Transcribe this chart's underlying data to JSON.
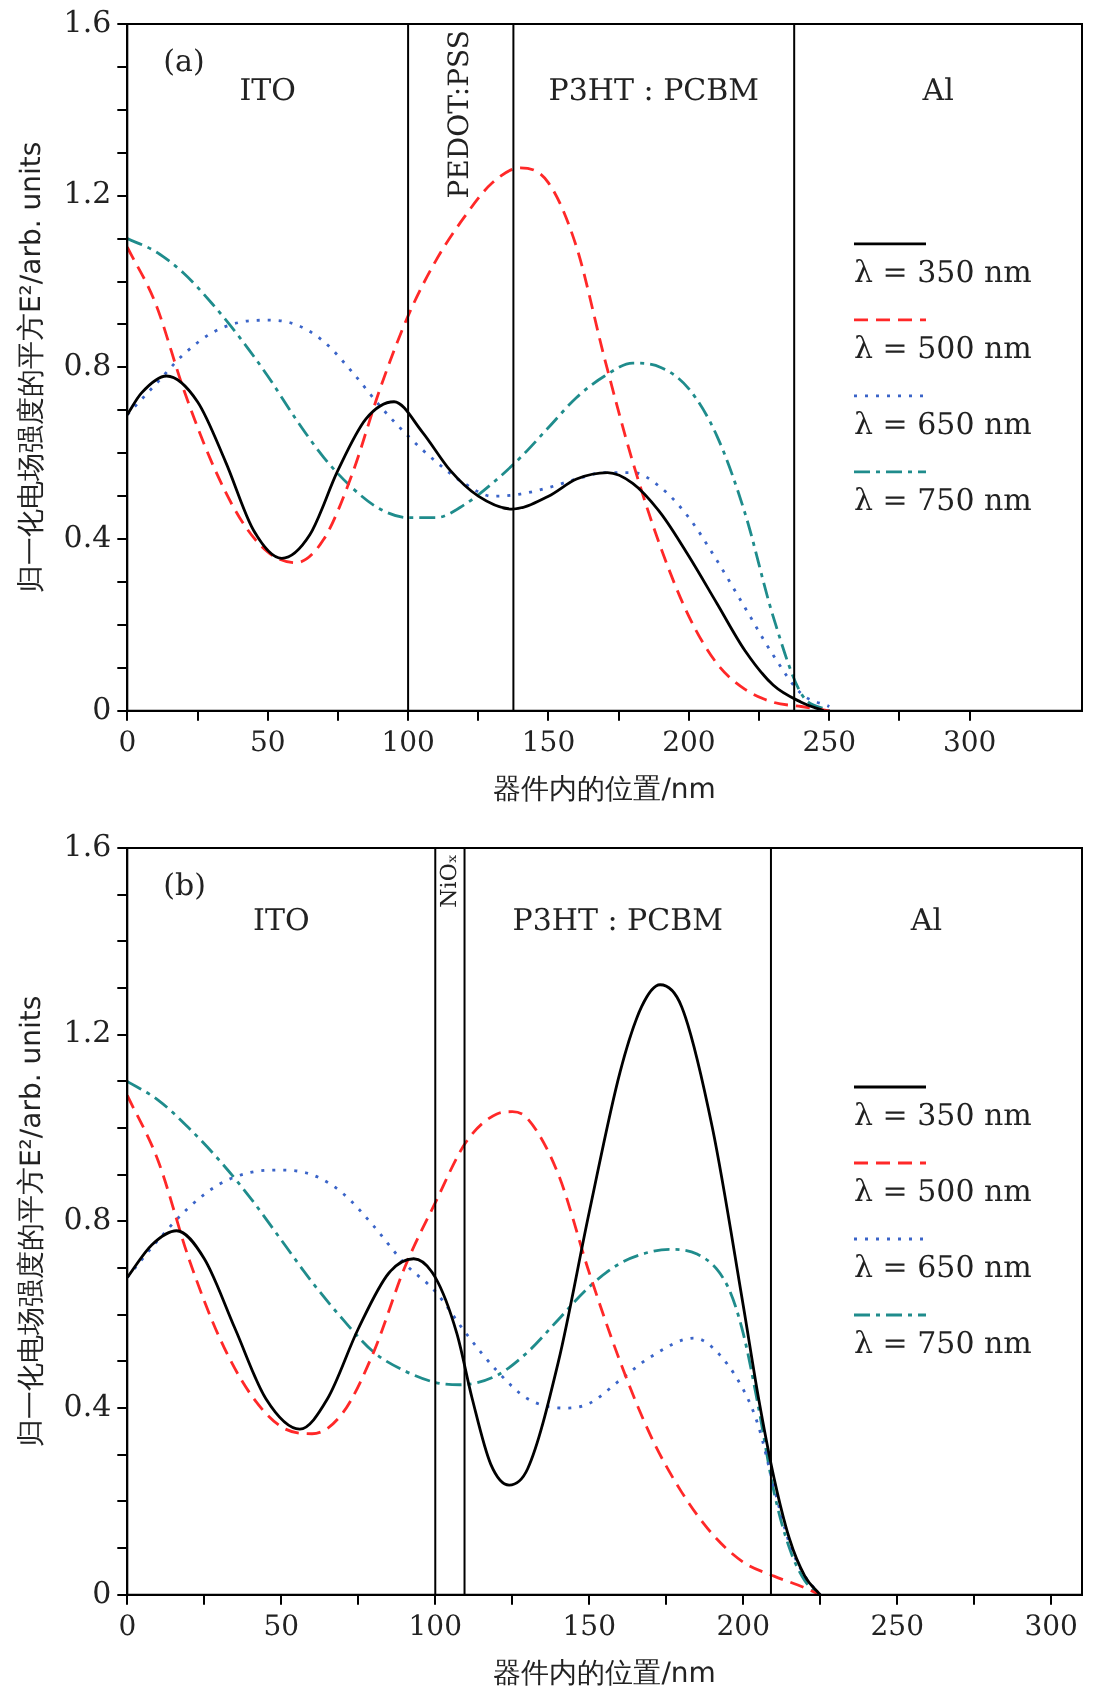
{
  "chart_data": [
    {
      "type": "line",
      "xlabel": "器件内的位置/nm",
      "ylabel": "归一化电场强度的平方E²/arb. units",
      "annotations": [
        "(a)",
        "ITO",
        "PEDOT:PSS",
        "P3HT : PCBM",
        "Al"
      ],
      "xlim": [
        0,
        340
      ],
      "xticks": [
        0,
        {
          "value": 25,
          "label": null
        },
        50,
        {
          "value": 75,
          "label": null
        },
        100,
        {
          "value": 125,
          "label": null
        },
        150,
        {
          "value": 175,
          "label": null
        },
        200,
        {
          "value": 225,
          "label": null
        },
        250,
        {
          "value": 275,
          "label": null
        },
        300
      ],
      "ylim": [
        0,
        1.6
      ],
      "yticks": [
        0,
        {
          "value": 0.1,
          "label": null
        },
        {
          "value": 0.2,
          "label": null
        },
        {
          "value": 0.3,
          "label": null
        },
        0.4,
        {
          "value": 0.5,
          "label": null
        },
        {
          "value": 0.6,
          "label": null
        },
        {
          "value": 0.7,
          "label": null
        },
        0.8,
        {
          "value": 0.9,
          "label": null
        },
        {
          "value": 1.0,
          "label": null
        },
        {
          "value": 1.1,
          "label": null
        },
        1.2,
        {
          "value": 1.3,
          "label": null
        },
        {
          "value": 1.4,
          "label": null
        },
        {
          "value": 1.5,
          "label": null
        },
        1.6
      ],
      "grid": false,
      "legend": "right",
      "marker": "none",
      "ref_lines": [
        {
          "axis": "x",
          "value": 100,
          "color": "#000000"
        },
        {
          "axis": "x",
          "value": 137.5,
          "color": "#000000"
        },
        {
          "axis": "x",
          "value": 237.5,
          "color": "#000000"
        }
      ],
      "series": [
        {
          "name": "λ = 350 nm",
          "color": "#000000",
          "line_style": "solid",
          "x": [
            0,
            5,
            14,
            25,
            35,
            45,
            55,
            65,
            75,
            85,
            95,
            105,
            115,
            125,
            137,
            150,
            160,
            171,
            180,
            190,
            200,
            210,
            220,
            230,
            240,
            248
          ],
          "values": [
            0.69,
            0.74,
            0.78,
            0.72,
            0.58,
            0.42,
            0.355,
            0.41,
            0.56,
            0.68,
            0.72,
            0.65,
            0.56,
            0.5,
            0.47,
            0.5,
            0.54,
            0.555,
            0.53,
            0.46,
            0.36,
            0.25,
            0.14,
            0.06,
            0.02,
            0
          ]
        },
        {
          "name": "λ = 500 nm",
          "color": "#ff2828",
          "line_style": "dashed",
          "x": [
            0,
            10,
            20,
            30,
            40,
            50,
            60,
            70,
            80,
            90,
            100,
            110,
            120,
            130,
            140,
            150,
            160,
            170,
            180,
            190,
            200,
            210,
            220,
            230,
            240,
            250
          ],
          "values": [
            1.08,
            0.95,
            0.75,
            0.58,
            0.45,
            0.37,
            0.345,
            0.4,
            0.55,
            0.75,
            0.92,
            1.05,
            1.15,
            1.23,
            1.265,
            1.23,
            1.08,
            0.82,
            0.58,
            0.38,
            0.22,
            0.11,
            0.05,
            0.02,
            0.01,
            0
          ]
        },
        {
          "name": "λ = 650 nm",
          "color": "#3a64c8",
          "line_style": "dotted",
          "x": [
            0,
            10,
            20,
            30,
            40,
            50,
            60,
            70,
            80,
            90,
            100,
            110,
            120,
            130,
            140,
            150,
            160,
            170,
            180,
            190,
            200,
            210,
            220,
            230,
            240,
            250
          ],
          "values": [
            0.69,
            0.76,
            0.83,
            0.88,
            0.905,
            0.91,
            0.9,
            0.86,
            0.79,
            0.71,
            0.64,
            0.58,
            0.53,
            0.5,
            0.505,
            0.52,
            0.54,
            0.555,
            0.555,
            0.52,
            0.45,
            0.35,
            0.24,
            0.13,
            0.04,
            0.01
          ]
        },
        {
          "name": "λ = 750 nm",
          "color": "#1f8c8c",
          "line_style": "dashdot",
          "x": [
            0,
            10,
            20,
            30,
            40,
            50,
            60,
            70,
            80,
            90,
            100,
            110,
            120,
            130,
            140,
            150,
            160,
            170,
            180,
            190,
            200,
            210,
            220,
            230,
            240,
            250
          ],
          "values": [
            1.1,
            1.07,
            1.02,
            0.95,
            0.87,
            0.78,
            0.68,
            0.59,
            0.52,
            0.47,
            0.45,
            0.45,
            0.48,
            0.53,
            0.59,
            0.66,
            0.73,
            0.78,
            0.81,
            0.8,
            0.75,
            0.64,
            0.46,
            0.22,
            0.04,
            0
          ]
        }
      ]
    },
    {
      "type": "line",
      "xlabel": "器件内的位置/nm",
      "ylabel": "归一化电场强度的平方E²/arb. units",
      "annotations": [
        "(b)",
        "ITO",
        "NiOₓ",
        "P3HT : PCBM",
        "Al"
      ],
      "xlim": [
        0,
        310
      ],
      "xticks": [
        0,
        {
          "value": 25,
          "label": null
        },
        50,
        {
          "value": 75,
          "label": null
        },
        100,
        {
          "value": 125,
          "label": null
        },
        150,
        {
          "value": 175,
          "label": null
        },
        200,
        {
          "value": 225,
          "label": null
        },
        250,
        {
          "value": 275,
          "label": null
        },
        300
      ],
      "ylim": [
        0,
        1.6
      ],
      "yticks": [
        0,
        {
          "value": 0.1,
          "label": null
        },
        {
          "value": 0.2,
          "label": null
        },
        {
          "value": 0.3,
          "label": null
        },
        0.4,
        {
          "value": 0.5,
          "label": null
        },
        {
          "value": 0.6,
          "label": null
        },
        {
          "value": 0.7,
          "label": null
        },
        0.8,
        {
          "value": 0.9,
          "label": null
        },
        {
          "value": 1.0,
          "label": null
        },
        {
          "value": 1.1,
          "label": null
        },
        1.2,
        {
          "value": 1.3,
          "label": null
        },
        {
          "value": 1.4,
          "label": null
        },
        {
          "value": 1.5,
          "label": null
        },
        1.6
      ],
      "grid": false,
      "legend": "right",
      "marker": "none",
      "ref_lines": [
        {
          "axis": "x",
          "value": 100,
          "color": "#000000"
        },
        {
          "axis": "x",
          "value": 109.5,
          "color": "#000000"
        },
        {
          "axis": "x",
          "value": 209,
          "color": "#000000"
        }
      ],
      "series": [
        {
          "name": "λ = 350 nm",
          "color": "#000000",
          "line_style": "solid",
          "x": [
            0,
            8,
            16,
            25,
            35,
            45,
            56,
            65,
            75,
            85,
            93,
            100,
            107,
            112,
            118,
            124,
            130,
            140,
            150,
            160,
            167,
            173,
            180,
            190,
            200,
            205,
            210,
            215,
            220,
            225
          ],
          "values": [
            0.68,
            0.75,
            0.78,
            0.72,
            0.57,
            0.42,
            0.355,
            0.42,
            0.57,
            0.69,
            0.72,
            0.68,
            0.56,
            0.42,
            0.28,
            0.235,
            0.27,
            0.5,
            0.82,
            1.12,
            1.26,
            1.307,
            1.26,
            1.0,
            0.62,
            0.42,
            0.25,
            0.12,
            0.04,
            0
          ]
        },
        {
          "name": "λ = 500 nm",
          "color": "#ff2828",
          "line_style": "dashed",
          "x": [
            0,
            10,
            20,
            30,
            40,
            50,
            60,
            70,
            80,
            90,
            100,
            110,
            120,
            125,
            130,
            140,
            150,
            160,
            170,
            180,
            190,
            200,
            210,
            220,
            225
          ],
          "values": [
            1.07,
            0.93,
            0.72,
            0.55,
            0.43,
            0.36,
            0.345,
            0.39,
            0.52,
            0.7,
            0.84,
            0.97,
            1.03,
            1.035,
            1.02,
            0.9,
            0.69,
            0.5,
            0.34,
            0.22,
            0.13,
            0.07,
            0.04,
            0.015,
            0
          ]
        },
        {
          "name": "λ = 650 nm",
          "color": "#3a64c8",
          "line_style": "dotted",
          "x": [
            0,
            10,
            20,
            30,
            40,
            50,
            60,
            70,
            80,
            90,
            100,
            110,
            120,
            130,
            142,
            150,
            160,
            170,
            184,
            190,
            200,
            205,
            210,
            215,
            220,
            225
          ],
          "values": [
            0.68,
            0.76,
            0.83,
            0.88,
            0.905,
            0.91,
            0.9,
            0.86,
            0.79,
            0.71,
            0.65,
            0.56,
            0.48,
            0.42,
            0.4,
            0.41,
            0.46,
            0.51,
            0.55,
            0.53,
            0.44,
            0.36,
            0.23,
            0.11,
            0.04,
            0
          ]
        },
        {
          "name": "λ = 750 nm",
          "color": "#1f8c8c",
          "line_style": "dashdot",
          "x": [
            0,
            10,
            20,
            30,
            40,
            50,
            60,
            70,
            80,
            90,
            100,
            108,
            120,
            130,
            140,
            150,
            160,
            170,
            176,
            185,
            195,
            200,
            205,
            210,
            215,
            220,
            225
          ],
          "values": [
            1.1,
            1.06,
            1.0,
            0.93,
            0.85,
            0.76,
            0.67,
            0.59,
            0.52,
            0.48,
            0.455,
            0.45,
            0.47,
            0.52,
            0.59,
            0.66,
            0.71,
            0.735,
            0.74,
            0.73,
            0.66,
            0.56,
            0.4,
            0.22,
            0.1,
            0.03,
            0
          ]
        }
      ]
    }
  ]
}
